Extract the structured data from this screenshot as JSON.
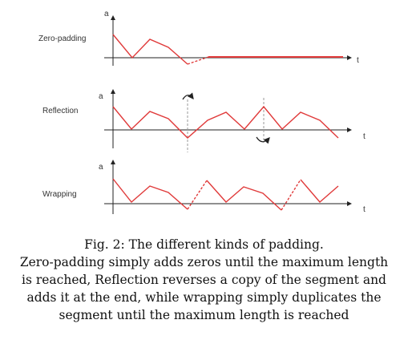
{
  "rows": [
    {
      "key": "zero",
      "label": "Zero-padding",
      "y_axis": "a",
      "x_axis": "t"
    },
    {
      "key": "reflection",
      "label": "Reflection",
      "y_axis": "a",
      "x_axis": "t"
    },
    {
      "key": "wrapping",
      "label": "Wrapping",
      "y_axis": "a",
      "x_axis": "t"
    }
  ],
  "colors": {
    "signal": "#e03a3a",
    "axis": "#222222",
    "marker": "#999999"
  },
  "caption": {
    "line1": "Fig. 2: The different kinds of padding.",
    "line2": "Zero-padding simply adds zeros until the maximum length",
    "line3": "is reached, Reflection reverses a copy of the segment and",
    "line4": "adds it at the end, while wrapping simply duplicates the",
    "line5": "segment until the maximum length is reached"
  }
}
